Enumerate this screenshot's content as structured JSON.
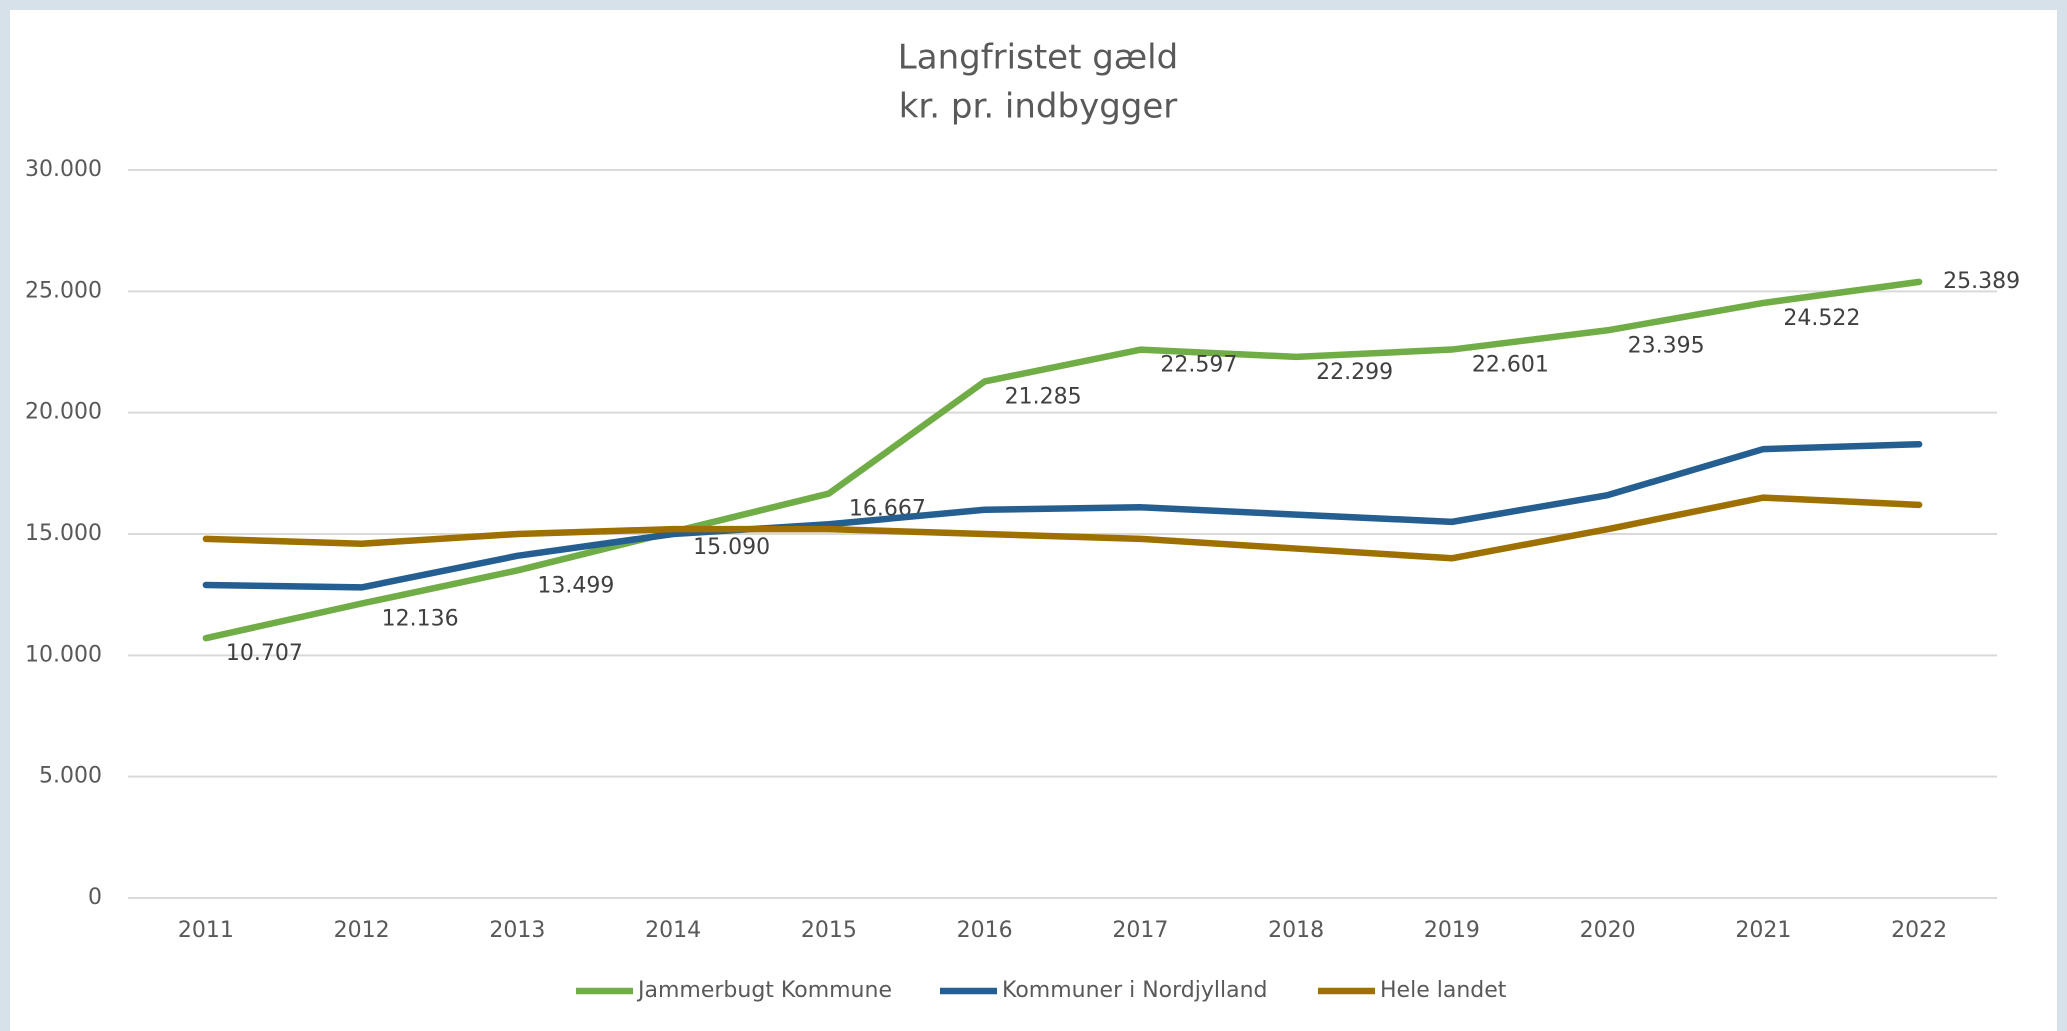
{
  "chart_data": {
    "type": "line",
    "title": "Langfristet gæld",
    "subtitle": "kr. pr. indbygger",
    "categories": [
      "2011",
      "2012",
      "2013",
      "2014",
      "2015",
      "2016",
      "2017",
      "2018",
      "2019",
      "2020",
      "2021",
      "2022"
    ],
    "series": [
      {
        "name": "Jammerbugt Kommune",
        "color": "#70ad47",
        "values": [
          10707,
          12136,
          13499,
          15090,
          16667,
          21285,
          22597,
          22299,
          22601,
          23395,
          24522,
          25389
        ],
        "value_labels": [
          "10.707",
          "12.136",
          "13.499",
          "15.090",
          "16.667",
          "21.285",
          "22.597",
          "22.299",
          "22.601",
          "23.395",
          "24.522",
          "25.389"
        ]
      },
      {
        "name": "Kommuner i Nordjylland",
        "color": "#255e91",
        "values": [
          12900,
          12800,
          14100,
          15000,
          15400,
          16000,
          16100,
          15800,
          15500,
          16600,
          18500,
          18700
        ]
      },
      {
        "name": "Hele landet",
        "color": "#9e7000",
        "values": [
          14800,
          14600,
          15000,
          15200,
          15200,
          15000,
          14800,
          14400,
          14000,
          15200,
          16500,
          16200
        ]
      }
    ],
    "ylim": [
      0,
      30000
    ],
    "yticks": [
      0,
      {
        "value": 5000,
        "label": "5.000"
      },
      {
        "value": 10000,
        "label": "10.000"
      },
      {
        "value": 15000,
        "label": "15.000"
      },
      {
        "value": 20000,
        "label": "20.000"
      },
      {
        "value": 25000,
        "label": "25.000"
      },
      {
        "value": 30000,
        "label": "30.000"
      }
    ],
    "grid": true,
    "legend": "bottom"
  }
}
